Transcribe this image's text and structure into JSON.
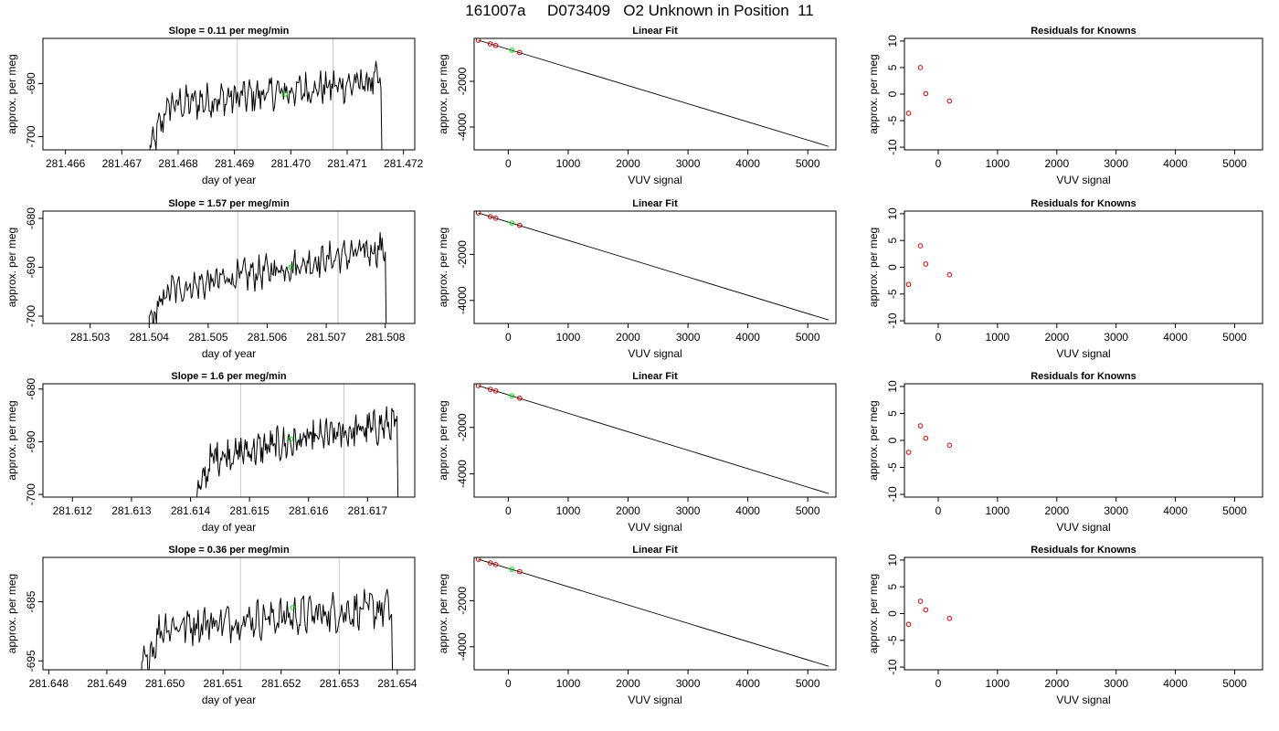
{
  "title": "161007a     D073409   O2 Unknown in Position  11",
  "colors": {
    "trace": "#000000",
    "marker_unknown": "#00dd00",
    "marker_known": "#cc0000",
    "vline": "#c8c8c8"
  },
  "chart_data": [
    {
      "panel": "timeseries-1",
      "type": "line",
      "title": "Slope =  0.11  per meg/min",
      "xlabel": "day of year",
      "ylabel": "approx. per meg",
      "xlim": [
        281.4656,
        281.4722
      ],
      "ylim": [
        -702.5,
        -681.5
      ],
      "xticks": [
        "281.466",
        "281.467",
        "281.468",
        "281.469",
        "281.470",
        "281.471",
        "281.472"
      ],
      "xtick_values": [
        281.466,
        281.467,
        281.468,
        281.469,
        281.47,
        281.471,
        281.472
      ],
      "yticks": [
        "-700",
        "-690"
      ],
      "ytick_values": [
        -700,
        -690
      ],
      "t_start": 281.4675,
      "t_end": 281.4716,
      "level_start": -694.5,
      "level_end": -689.5,
      "vlines": [
        281.46905,
        281.47075
      ],
      "unknown_point": {
        "x": 281.4699,
        "y": -692.0
      }
    },
    {
      "panel": "timeseries-2",
      "type": "line",
      "title": "Slope =  1.57  per meg/min",
      "xlabel": "day of year",
      "ylabel": "approx. per meg",
      "xlim": [
        281.5022,
        281.5085
      ],
      "ylim": [
        -701.5,
        -678.5
      ],
      "xticks": [
        "281.503",
        "281.504",
        "281.505",
        "281.506",
        "281.507",
        "281.508"
      ],
      "xtick_values": [
        281.503,
        281.504,
        281.505,
        281.506,
        281.507,
        281.508
      ],
      "yticks": [
        "-700",
        "-690",
        "-680"
      ],
      "ytick_values": [
        -700,
        -690,
        -680
      ],
      "t_start": 281.504,
      "t_end": 281.508,
      "level_start": -695.5,
      "level_end": -686.0,
      "vlines": [
        281.5055,
        281.5072
      ],
      "unknown_point": {
        "x": 281.5064,
        "y": -690.0
      }
    },
    {
      "panel": "timeseries-3",
      "type": "line",
      "title": "Slope =  1.6  per meg/min",
      "xlabel": "day of year",
      "ylabel": "approx. per meg",
      "xlim": [
        281.6115,
        281.6178
      ],
      "ylim": [
        -700.5,
        -679.0
      ],
      "xticks": [
        "281.612",
        "281.613",
        "281.614",
        "281.615",
        "281.616",
        "281.617"
      ],
      "xtick_values": [
        281.612,
        281.613,
        281.614,
        281.615,
        281.616,
        281.617
      ],
      "yticks": [
        "-700",
        "-690",
        "-680"
      ],
      "ytick_values": [
        -700,
        -690,
        -680
      ],
      "t_start": 281.6141,
      "t_end": 281.6175,
      "level_start": -693.5,
      "level_end": -686.5,
      "vlines": [
        281.61485,
        281.6166
      ],
      "unknown_point": {
        "x": 281.6157,
        "y": -689.5
      }
    },
    {
      "panel": "timeseries-4",
      "type": "line",
      "title": "Slope =  0.36  per meg/min",
      "xlabel": "day of year",
      "ylabel": "approx. per meg",
      "xlim": [
        281.6479,
        281.6543
      ],
      "ylim": [
        -696.5,
        -677.5
      ],
      "xticks": [
        "281.648",
        "281.649",
        "281.650",
        "281.651",
        "281.652",
        "281.653",
        "281.654"
      ],
      "xtick_values": [
        281.648,
        281.649,
        281.65,
        281.651,
        281.652,
        281.653,
        281.654
      ],
      "yticks": [
        "-695",
        "-685"
      ],
      "ytick_values": [
        -695,
        -685
      ],
      "t_start": 281.6496,
      "t_end": 281.6539,
      "level_start": -689.5,
      "level_end": -686.0,
      "vlines": [
        281.6513,
        281.653
      ],
      "unknown_point": {
        "x": 281.6522,
        "y": -686.0
      }
    },
    {
      "panel": "linearfit-1",
      "type": "scatter",
      "title": "Linear Fit",
      "xlabel": "VUV signal",
      "ylabel": "approx. per meg",
      "xlim": [
        -570,
        5470
      ],
      "ylim": [
        -5000,
        -120
      ],
      "xticks": [
        "0",
        "1000",
        "2000",
        "3000",
        "4000",
        "5000"
      ],
      "xtick_values": [
        0,
        1000,
        2000,
        3000,
        4000,
        5000
      ],
      "yticks": [
        "-4000",
        "-2000"
      ],
      "ytick_values": [
        -4000,
        -2000
      ],
      "fit_line": [
        [
          -500,
          -200
        ],
        [
          5350,
          -4850
        ]
      ],
      "known_points": [
        [
          -500,
          -200
        ],
        [
          -300,
          -360
        ],
        [
          -210,
          -430
        ],
        [
          190,
          -740
        ]
      ],
      "unknown_points": [
        [
          60,
          -640
        ]
      ]
    },
    {
      "panel": "linearfit-2",
      "type": "scatter",
      "title": "Linear Fit",
      "xlabel": "VUV signal",
      "ylabel": "approx. per meg",
      "xlim": [
        -570,
        5470
      ],
      "ylim": [
        -5000,
        -120
      ],
      "xticks": [
        "0",
        "1000",
        "2000",
        "3000",
        "4000",
        "5000"
      ],
      "xtick_values": [
        0,
        1000,
        2000,
        3000,
        4000,
        5000
      ],
      "yticks": [
        "-4000",
        "-2000"
      ],
      "ytick_values": [
        -4000,
        -2000
      ],
      "fit_line": [
        [
          -500,
          -200
        ],
        [
          5350,
          -4850
        ]
      ],
      "known_points": [
        [
          -500,
          -200
        ],
        [
          -300,
          -360
        ],
        [
          -210,
          -430
        ],
        [
          190,
          -740
        ]
      ],
      "unknown_points": [
        [
          60,
          -640
        ]
      ]
    },
    {
      "panel": "linearfit-3",
      "type": "scatter",
      "title": "Linear Fit",
      "xlabel": "VUV signal",
      "ylabel": "approx. per meg",
      "xlim": [
        -570,
        5470
      ],
      "ylim": [
        -5000,
        -120
      ],
      "xticks": [
        "0",
        "1000",
        "2000",
        "3000",
        "4000",
        "5000"
      ],
      "xtick_values": [
        0,
        1000,
        2000,
        3000,
        4000,
        5000
      ],
      "yticks": [
        "-4000",
        "-2000"
      ],
      "ytick_values": [
        -4000,
        -2000
      ],
      "fit_line": [
        [
          -500,
          -200
        ],
        [
          5350,
          -4850
        ]
      ],
      "known_points": [
        [
          -500,
          -200
        ],
        [
          -300,
          -360
        ],
        [
          -210,
          -430
        ],
        [
          190,
          -740
        ]
      ],
      "unknown_points": [
        [
          60,
          -640
        ]
      ]
    },
    {
      "panel": "linearfit-4",
      "type": "scatter",
      "title": "Linear Fit",
      "xlabel": "VUV signal",
      "ylabel": "approx. per meg",
      "xlim": [
        -570,
        5470
      ],
      "ylim": [
        -5000,
        -120
      ],
      "xticks": [
        "0",
        "1000",
        "2000",
        "3000",
        "4000",
        "5000"
      ],
      "xtick_values": [
        0,
        1000,
        2000,
        3000,
        4000,
        5000
      ],
      "yticks": [
        "-4000",
        "-2000"
      ],
      "ytick_values": [
        -4000,
        -2000
      ],
      "fit_line": [
        [
          -500,
          -200
        ],
        [
          5350,
          -4850
        ]
      ],
      "known_points": [
        [
          -500,
          -200
        ],
        [
          -300,
          -360
        ],
        [
          -210,
          -430
        ],
        [
          190,
          -740
        ]
      ],
      "unknown_points": [
        [
          60,
          -640
        ]
      ]
    },
    {
      "panel": "residuals-1",
      "type": "scatter",
      "title": "Residuals for Knowns",
      "xlabel": "VUV signal",
      "ylabel": "approx. per meg",
      "xlim": [
        -570,
        5470
      ],
      "ylim": [
        -10.5,
        10.5
      ],
      "xticks": [
        "0",
        "1000",
        "2000",
        "3000",
        "4000",
        "5000"
      ],
      "xtick_values": [
        0,
        1000,
        2000,
        3000,
        4000,
        5000
      ],
      "yticks": [
        "-10",
        "-5",
        "0",
        "5",
        "10"
      ],
      "ytick_values": [
        -10,
        -5,
        0,
        5,
        10
      ],
      "known_points": [
        [
          -500,
          -3.6
        ],
        [
          -300,
          5.0
        ],
        [
          -210,
          0.1
        ],
        [
          190,
          -1.3
        ]
      ]
    },
    {
      "panel": "residuals-2",
      "type": "scatter",
      "title": "Residuals for Knowns",
      "xlabel": "VUV signal",
      "ylabel": "approx. per meg",
      "xlim": [
        -570,
        5470
      ],
      "ylim": [
        -10.5,
        10.5
      ],
      "xticks": [
        "0",
        "1000",
        "2000",
        "3000",
        "4000",
        "5000"
      ],
      "xtick_values": [
        0,
        1000,
        2000,
        3000,
        4000,
        5000
      ],
      "yticks": [
        "-10",
        "-5",
        "0",
        "5",
        "10"
      ],
      "ytick_values": [
        -10,
        -5,
        0,
        5,
        10
      ],
      "known_points": [
        [
          -500,
          -3.2
        ],
        [
          -300,
          4.0
        ],
        [
          -210,
          0.6
        ],
        [
          190,
          -1.4
        ]
      ]
    },
    {
      "panel": "residuals-3",
      "type": "scatter",
      "title": "Residuals for Knowns",
      "xlabel": "VUV signal",
      "ylabel": "approx. per meg",
      "xlim": [
        -570,
        5470
      ],
      "ylim": [
        -10.5,
        10.5
      ],
      "xticks": [
        "0",
        "1000",
        "2000",
        "3000",
        "4000",
        "5000"
      ],
      "xtick_values": [
        0,
        1000,
        2000,
        3000,
        4000,
        5000
      ],
      "yticks": [
        "-10",
        "-5",
        "0",
        "5",
        "10"
      ],
      "ytick_values": [
        -10,
        -5,
        0,
        5,
        10
      ],
      "known_points": [
        [
          -500,
          -2.2
        ],
        [
          -300,
          2.7
        ],
        [
          -210,
          0.4
        ],
        [
          190,
          -0.9
        ]
      ]
    },
    {
      "panel": "residuals-4",
      "type": "scatter",
      "title": "Residuals for Knowns",
      "xlabel": "VUV signal",
      "ylabel": "approx. per meg",
      "xlim": [
        -570,
        5470
      ],
      "ylim": [
        -10.5,
        10.5
      ],
      "xticks": [
        "0",
        "1000",
        "2000",
        "3000",
        "4000",
        "5000"
      ],
      "xtick_values": [
        0,
        1000,
        2000,
        3000,
        4000,
        5000
      ],
      "yticks": [
        "-10",
        "-5",
        "0",
        "5",
        "10"
      ],
      "ytick_values": [
        -10,
        -5,
        0,
        5,
        10
      ],
      "known_points": [
        [
          -500,
          -2.0
        ],
        [
          -300,
          2.3
        ],
        [
          -210,
          0.7
        ],
        [
          190,
          -0.9
        ]
      ]
    }
  ]
}
